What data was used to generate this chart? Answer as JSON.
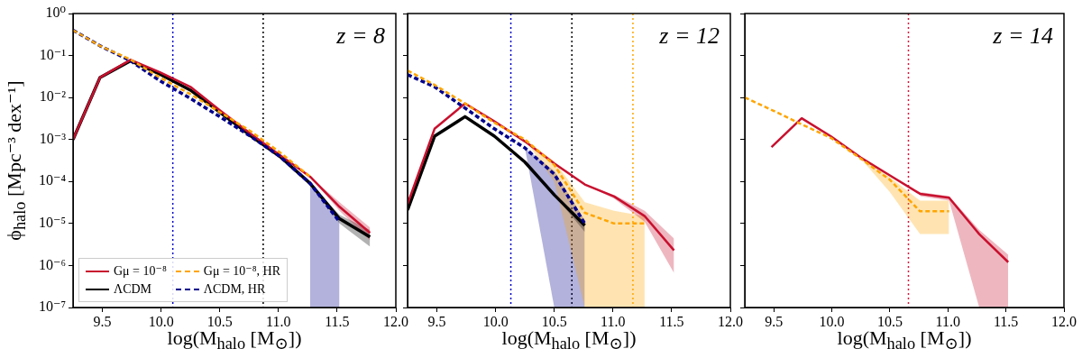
{
  "chart_data": [
    {
      "type": "line",
      "annotations": [
        "z = 8"
      ],
      "xlabel": "log(M$_{halo}$ [M$_{⊙}$])",
      "ylabel": "ϕ$_{halo}$ [Mpc⁻³ dex⁻¹]",
      "log": "y",
      "legend": "bottom left",
      "xlim": [
        9.25,
        12.0
      ],
      "xticks": [
        9.5,
        {
          "value": 10,
          "label": "10.0"
        },
        10.5,
        {
          "value": 11,
          "label": "11.0"
        },
        11.5,
        {
          "value": 12,
          "label": "12.0"
        }
      ],
      "ylim": [
        1e-07,
        1
      ],
      "yticks": [
        {
          "value": 1,
          "label": "10⁰"
        },
        {
          "value": 0.1,
          "label": "10⁻¹"
        },
        {
          "value": 0.01,
          "label": "10⁻²"
        },
        {
          "value": 0.001,
          "label": "10⁻³"
        },
        {
          "value": 0.0001,
          "label": "10⁻⁴"
        },
        {
          "value": 1e-05,
          "label": "10⁻⁵"
        },
        {
          "value": 1e-06,
          "label": "10⁻⁶"
        },
        {
          "value": 1e-07,
          "label": "10⁻⁷"
        }
      ],
      "ref_lines": [
        {
          "axis": "x",
          "value": 10.1,
          "color": "#0000cd",
          "line_style": "dotted"
        },
        {
          "axis": "x",
          "value": 10.87,
          "color": "#000000",
          "line_style": "dotted"
        }
      ],
      "series": [
        {
          "name": "Gμ = 10⁻⁸",
          "color": "#c8102e",
          "line_style": "solid",
          "x": [
            9.25,
            9.48,
            9.74,
            9.99,
            10.25,
            10.5,
            10.76,
            11.01,
            11.27,
            11.52,
            11.78
          ],
          "values": [
            0.001,
            0.03,
            0.079,
            0.04,
            0.018,
            0.005,
            0.0014,
            0.00043,
            0.00013,
            2.5e-05,
            6e-06
          ],
          "lower": [
            null,
            null,
            null,
            null,
            null,
            null,
            null,
            null,
            0.00013,
            2e-05,
            4e-06
          ],
          "upper": [
            null,
            null,
            null,
            null,
            null,
            null,
            null,
            null,
            0.00013,
            3.2e-05,
            8e-06
          ]
        },
        {
          "name": "ΛCDM",
          "color": "#000000",
          "line_style": "solid",
          "x": [
            9.25,
            9.48,
            9.74,
            9.99,
            10.25,
            10.5,
            10.76,
            11.01,
            11.27,
            11.52,
            11.78
          ],
          "values": [
            0.001,
            0.03,
            0.075,
            0.036,
            0.015,
            0.0045,
            0.00125,
            0.0004,
            9e-05,
            1.3e-05,
            4.8e-06
          ],
          "lower": [
            null,
            null,
            null,
            null,
            null,
            null,
            null,
            null,
            9e-05,
            1e-05,
            2.8e-06
          ],
          "upper": [
            null,
            null,
            null,
            null,
            null,
            null,
            null,
            null,
            9e-05,
            1.6e-05,
            7e-06
          ]
        },
        {
          "name": "Gμ = 10⁻⁸, HR",
          "color": "#ffa500",
          "line_style": "dashed",
          "x": [
            9.25,
            9.48,
            9.74,
            9.99,
            10.25,
            10.5,
            10.76,
            11.01,
            11.27
          ],
          "values": [
            0.4,
            0.17,
            0.08,
            0.03,
            0.012,
            0.0045,
            0.0016,
            0.0005,
            0.00013
          ]
        },
        {
          "name": "ΛCDM, HR",
          "color": "#00008b",
          "line_style": "dashed",
          "x": [
            9.25,
            9.48,
            9.74,
            9.99,
            10.25,
            10.5,
            10.76,
            11.01,
            11.27,
            11.52
          ],
          "values": [
            0.4,
            0.17,
            0.075,
            0.025,
            0.0095,
            0.0035,
            0.0012,
            0.0004,
            9e-05,
            1.1e-05
          ],
          "lower": [
            null,
            null,
            null,
            null,
            null,
            null,
            null,
            null,
            1e-07,
            1e-07
          ],
          "upper": [
            null,
            null,
            null,
            null,
            null,
            null,
            null,
            null,
            9e-05,
            1.2e-05
          ]
        }
      ]
    },
    {
      "type": "line",
      "annotations": [
        "z = 12"
      ],
      "xlabel": "log(M$_{halo}$ [M$_{⊙}$])",
      "log": "y",
      "tick_labels": "x",
      "xlim": [
        9.25,
        12.0
      ],
      "xticks": [
        9.5,
        {
          "value": 10,
          "label": "10.0"
        },
        10.5,
        {
          "value": 11,
          "label": "11.0"
        },
        11.5,
        {
          "value": 12,
          "label": "12.0"
        }
      ],
      "ylim": [
        1e-07,
        1
      ],
      "yticks": [
        1,
        0.1,
        0.01,
        0.001,
        0.0001,
        1e-05,
        1e-06,
        1e-07
      ],
      "ref_lines": [
        {
          "axis": "x",
          "value": 10.13,
          "color": "#0000cd",
          "line_style": "dotted"
        },
        {
          "axis": "x",
          "value": 10.65,
          "color": "#000000",
          "line_style": "dotted"
        },
        {
          "axis": "x",
          "value": 11.17,
          "color": "#ffa500",
          "line_style": "dotted"
        }
      ],
      "series": [
        {
          "color": "#c8102e",
          "line_style": "solid",
          "x": [
            9.25,
            9.48,
            9.74,
            9.99,
            10.25,
            10.5,
            10.76,
            11.01,
            11.27,
            11.52
          ],
          "values": [
            2.9e-05,
            0.0018,
            0.0072,
            0.0027,
            0.0009,
            0.00027,
            8.5e-05,
            4.4e-05,
            1.5e-05,
            2.3e-06
          ],
          "lower": [
            null,
            null,
            null,
            null,
            null,
            null,
            8.5e-05,
            3.9e-05,
            1.1e-05,
            6.6e-07
          ],
          "upper": [
            null,
            null,
            null,
            null,
            null,
            null,
            8.5e-05,
            4.8e-05,
            2e-05,
            4.4e-06
          ]
        },
        {
          "color": "#000000",
          "line_style": "solid",
          "x": [
            9.25,
            9.48,
            9.74,
            9.99,
            10.25,
            10.5,
            10.76
          ],
          "values": [
            2.1e-05,
            0.0012,
            0.0035,
            0.0012,
            0.00029,
            4.8e-05,
            9e-06
          ],
          "lower": [
            null,
            null,
            null,
            null,
            null,
            4.8e-05,
            6.3e-06
          ],
          "upper": [
            null,
            null,
            null,
            null,
            null,
            4.8e-05,
            1.1e-05
          ]
        },
        {
          "color": "#ffa500",
          "line_style": "dashed",
          "x": [
            9.25,
            9.48,
            9.74,
            9.99,
            10.25,
            10.5,
            10.76,
            11.01,
            11.27
          ],
          "values": [
            0.044,
            0.02,
            0.0072,
            0.0025,
            0.001,
            0.00025,
            1.8e-05,
            1e-05,
            1e-05
          ],
          "lower": [
            null,
            null,
            null,
            null,
            0.001,
            0.0001,
            1e-07,
            1e-07,
            1e-07
          ],
          "upper": [
            null,
            null,
            null,
            null,
            0.001,
            0.0003,
            3.2e-05,
            2e-05,
            1.5e-05
          ]
        },
        {
          "color": "#00008b",
          "line_style": "dashed",
          "x": [
            9.25,
            9.48,
            9.74,
            9.99,
            10.25,
            10.5,
            10.76
          ],
          "values": [
            0.035,
            0.018,
            0.0056,
            0.0018,
            0.00063,
            0.00015,
            1e-05
          ],
          "lower": [
            null,
            null,
            null,
            null,
            0.00063,
            1e-07,
            1e-07
          ],
          "upper": [
            null,
            null,
            null,
            null,
            0.00063,
            0.00018,
            1.2e-05
          ]
        }
      ]
    },
    {
      "type": "line",
      "annotations": [
        "z = 14"
      ],
      "xlabel": "log(M$_{halo}$ [M$_{⊙}$])",
      "log": "y",
      "tick_labels": "x",
      "xlim": [
        9.25,
        12.0
      ],
      "xticks": [
        9.5,
        {
          "value": 10,
          "label": "10.0"
        },
        10.5,
        {
          "value": 11,
          "label": "11.0"
        },
        11.5,
        {
          "value": 12,
          "label": "12.0"
        }
      ],
      "ylim": [
        1e-07,
        1
      ],
      "yticks": [
        1,
        0.1,
        0.01,
        0.001,
        0.0001,
        1e-05,
        1e-06,
        1e-07
      ],
      "ref_lines": [
        {
          "axis": "x",
          "value": 10.66,
          "color": "#dc143c",
          "line_style": "dotted"
        }
      ],
      "series": [
        {
          "color": "#c8102e",
          "line_style": "solid",
          "x": [
            9.48,
            9.74,
            9.99,
            10.25,
            10.5,
            10.76,
            11.01,
            11.27,
            11.52
          ],
          "values": [
            0.00066,
            0.0032,
            0.0012,
            0.00037,
            0.00014,
            5.1e-05,
            4.1e-05,
            5.6e-06,
            1.2e-06
          ],
          "lower": [
            null,
            null,
            null,
            null,
            null,
            4.5e-05,
            3.5e-05,
            1e-07,
            1e-07
          ],
          "upper": [
            null,
            null,
            null,
            null,
            null,
            5.6e-05,
            4.5e-05,
            7e-06,
            1.8e-06
          ]
        },
        {
          "color": "#ffa500",
          "line_style": "dashed",
          "x": [
            9.25,
            9.48,
            9.74,
            9.99,
            10.25,
            10.5,
            10.76,
            11.01
          ],
          "values": [
            0.01,
            0.0051,
            0.0023,
            0.0011,
            0.00035,
            0.00011,
            1.95e-05,
            1.95e-05
          ],
          "lower": [
            null,
            null,
            null,
            null,
            0.00035,
            5.6e-05,
            5.6e-06,
            5.6e-06
          ],
          "upper": [
            null,
            null,
            null,
            null,
            0.00035,
            0.000126,
            3.5e-05,
            3.5e-05
          ]
        }
      ]
    }
  ]
}
